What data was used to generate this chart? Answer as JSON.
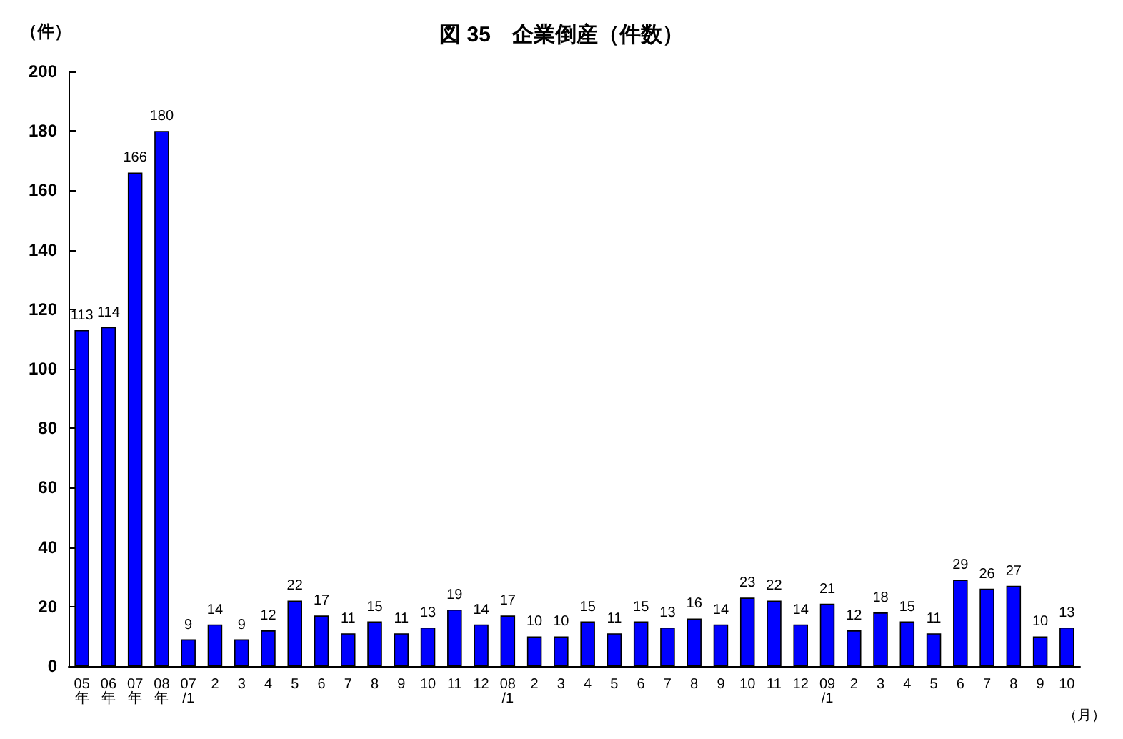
{
  "chart_data": {
    "type": "bar",
    "title": "図 35　企業倒産（件数）",
    "ylabel": "（件）",
    "xlabel": "（月）",
    "categories": [
      "05年",
      "06年",
      "07年",
      "08年",
      "07/1",
      "2",
      "3",
      "4",
      "5",
      "6",
      "7",
      "8",
      "9",
      "10",
      "11",
      "12",
      "08/1",
      "2",
      "3",
      "4",
      "5",
      "6",
      "7",
      "8",
      "9",
      "10",
      "11",
      "12",
      "09/1",
      "2",
      "3",
      "4",
      "5",
      "6",
      "7",
      "8",
      "9",
      "10"
    ],
    "values": [
      113,
      114,
      166,
      180,
      9,
      14,
      9,
      12,
      22,
      17,
      11,
      15,
      11,
      13,
      19,
      14,
      17,
      10,
      10,
      15,
      11,
      15,
      13,
      16,
      14,
      23,
      22,
      14,
      21,
      12,
      18,
      15,
      11,
      29,
      26,
      27,
      10,
      13
    ],
    "color": "#0000ff",
    "ylim": [
      0,
      200
    ],
    "yticks": [
      0,
      20,
      40,
      60,
      80,
      100,
      120,
      140,
      160,
      180,
      200
    ],
    "grid": false,
    "data_labels": true
  }
}
